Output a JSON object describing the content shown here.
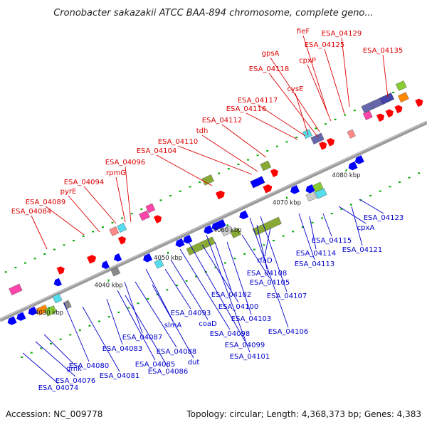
{
  "title": "Cronobacter sakazakii ATCC BAA-894 chromosome, complete geno...",
  "footer": {
    "accession": "Accession: NC_009778",
    "topology": "Topology: circular; Length: 4,368,373 bp; Genes: 4,383"
  },
  "colors": {
    "top_label": "#dd0000",
    "bottom_label": "#0000cc",
    "backbone": "#9b9b9b",
    "forward_arrow": "#ff0000",
    "reverse_arrow": "#0000ff",
    "tick": "#00aa00"
  },
  "ruler": [
    "4030 kbp",
    "4040 kbp",
    "4050 kbp",
    "4060 kbp",
    "4070 kbp",
    "4080 kbp"
  ],
  "top_labels": [
    "ESA_04084",
    "ESA_04089",
    "pyrE",
    "ESA_04094",
    "rpmG",
    "ESA_04096",
    "ESA_04104",
    "ESA_04110",
    "tdh",
    "ESA_04112",
    "ESA_04116",
    "ESA_04117",
    "ESA_04118",
    "gpsA",
    "cysE",
    "cpxP",
    "ESA_04125",
    "fieF",
    "ESA_04129",
    "ESA_04135"
  ],
  "bottom_labels": [
    "ESA_04074",
    "ESA_04076",
    "gmk",
    "ESA_04080",
    "ESA_04081",
    "ESA_04083",
    "ESA_04085",
    "ESA_04086",
    "ESA_04087",
    "ESA_04088",
    "dut",
    "slmA",
    "ESA_04093",
    "coaD",
    "ESA_04098",
    "ESA_04099",
    "ESA_04100",
    "ESA_04101",
    "ESA_04102",
    "ESA_04103",
    "ESA_04105",
    "ESA_04106",
    "ESA_04107",
    "ESA_04108",
    "rfaD",
    "ESA_04113",
    "ESA_04114",
    "ESA_04115",
    "cpxA",
    "ESA_04121",
    "ESA_04123"
  ]
}
